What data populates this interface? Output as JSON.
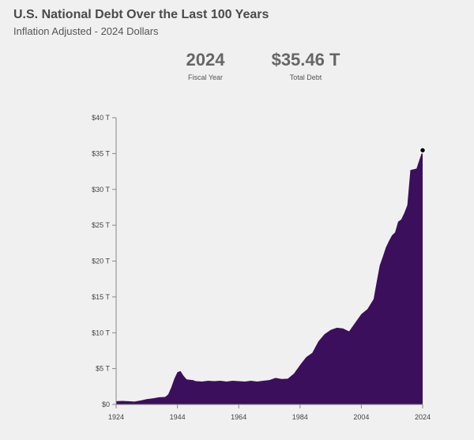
{
  "header": {
    "title": "U.S. National Debt Over the Last 100 Years",
    "subtitle": "Inflation Adjusted - 2024 Dollars"
  },
  "stats": {
    "year_value": "2024",
    "year_label": "Fiscal Year",
    "debt_value": "$35.46 T",
    "debt_label": "Total Debt"
  },
  "colors": {
    "area_fill": "#3b0f5c",
    "marker": "#000000"
  },
  "chart_data": {
    "type": "area",
    "title": "U.S. National Debt Over the Last 100 Years",
    "subtitle": "Inflation Adjusted - 2024 Dollars",
    "xlabel": "",
    "ylabel": "",
    "xlim": [
      1924,
      2024
    ],
    "ylim": [
      0,
      40
    ],
    "y_unit": "T",
    "x_ticks": [
      1924,
      1944,
      1964,
      1984,
      2004,
      2024
    ],
    "y_ticks": [
      0,
      5,
      10,
      15,
      20,
      25,
      30,
      35,
      40
    ],
    "y_tick_labels": [
      "$0",
      "$5 T",
      "$10 T",
      "$15 T",
      "$20 T",
      "$25 T",
      "$30 T",
      "$35 T",
      "$40 T"
    ],
    "grid": false,
    "highlight": {
      "x": 2024,
      "y": 35.46
    },
    "series": [
      {
        "x": [
          1924,
          1926,
          1928,
          1930,
          1932,
          1934,
          1936,
          1938,
          1940,
          1941,
          1942,
          1943,
          1944,
          1945,
          1946,
          1947,
          1948,
          1949,
          1950,
          1952,
          1954,
          1956,
          1958,
          1960,
          1962,
          1964,
          1966,
          1968,
          1970,
          1972,
          1974,
          1976,
          1978,
          1980,
          1982,
          1984,
          1986,
          1988,
          1990,
          1992,
          1994,
          1996,
          1998,
          2000,
          2002,
          2004,
          2006,
          2008,
          2009,
          2010,
          2011,
          2012,
          2013,
          2014,
          2015,
          2016,
          2017,
          2018,
          2019,
          2020,
          2021,
          2022,
          2023,
          2024
        ],
        "y": [
          0.45,
          0.5,
          0.45,
          0.4,
          0.55,
          0.75,
          0.85,
          1.0,
          1.05,
          1.4,
          2.4,
          3.6,
          4.5,
          4.65,
          4.0,
          3.5,
          3.45,
          3.4,
          3.25,
          3.2,
          3.3,
          3.25,
          3.3,
          3.2,
          3.3,
          3.25,
          3.2,
          3.3,
          3.2,
          3.3,
          3.4,
          3.7,
          3.55,
          3.6,
          4.3,
          5.5,
          6.6,
          7.2,
          8.8,
          9.8,
          10.4,
          10.7,
          10.6,
          10.2,
          11.4,
          12.6,
          13.3,
          14.7,
          17.1,
          19.4,
          20.6,
          21.9,
          22.8,
          23.6,
          24.0,
          25.5,
          25.8,
          26.7,
          27.8,
          32.7,
          32.8,
          32.9,
          34.2,
          35.46
        ]
      }
    ]
  }
}
